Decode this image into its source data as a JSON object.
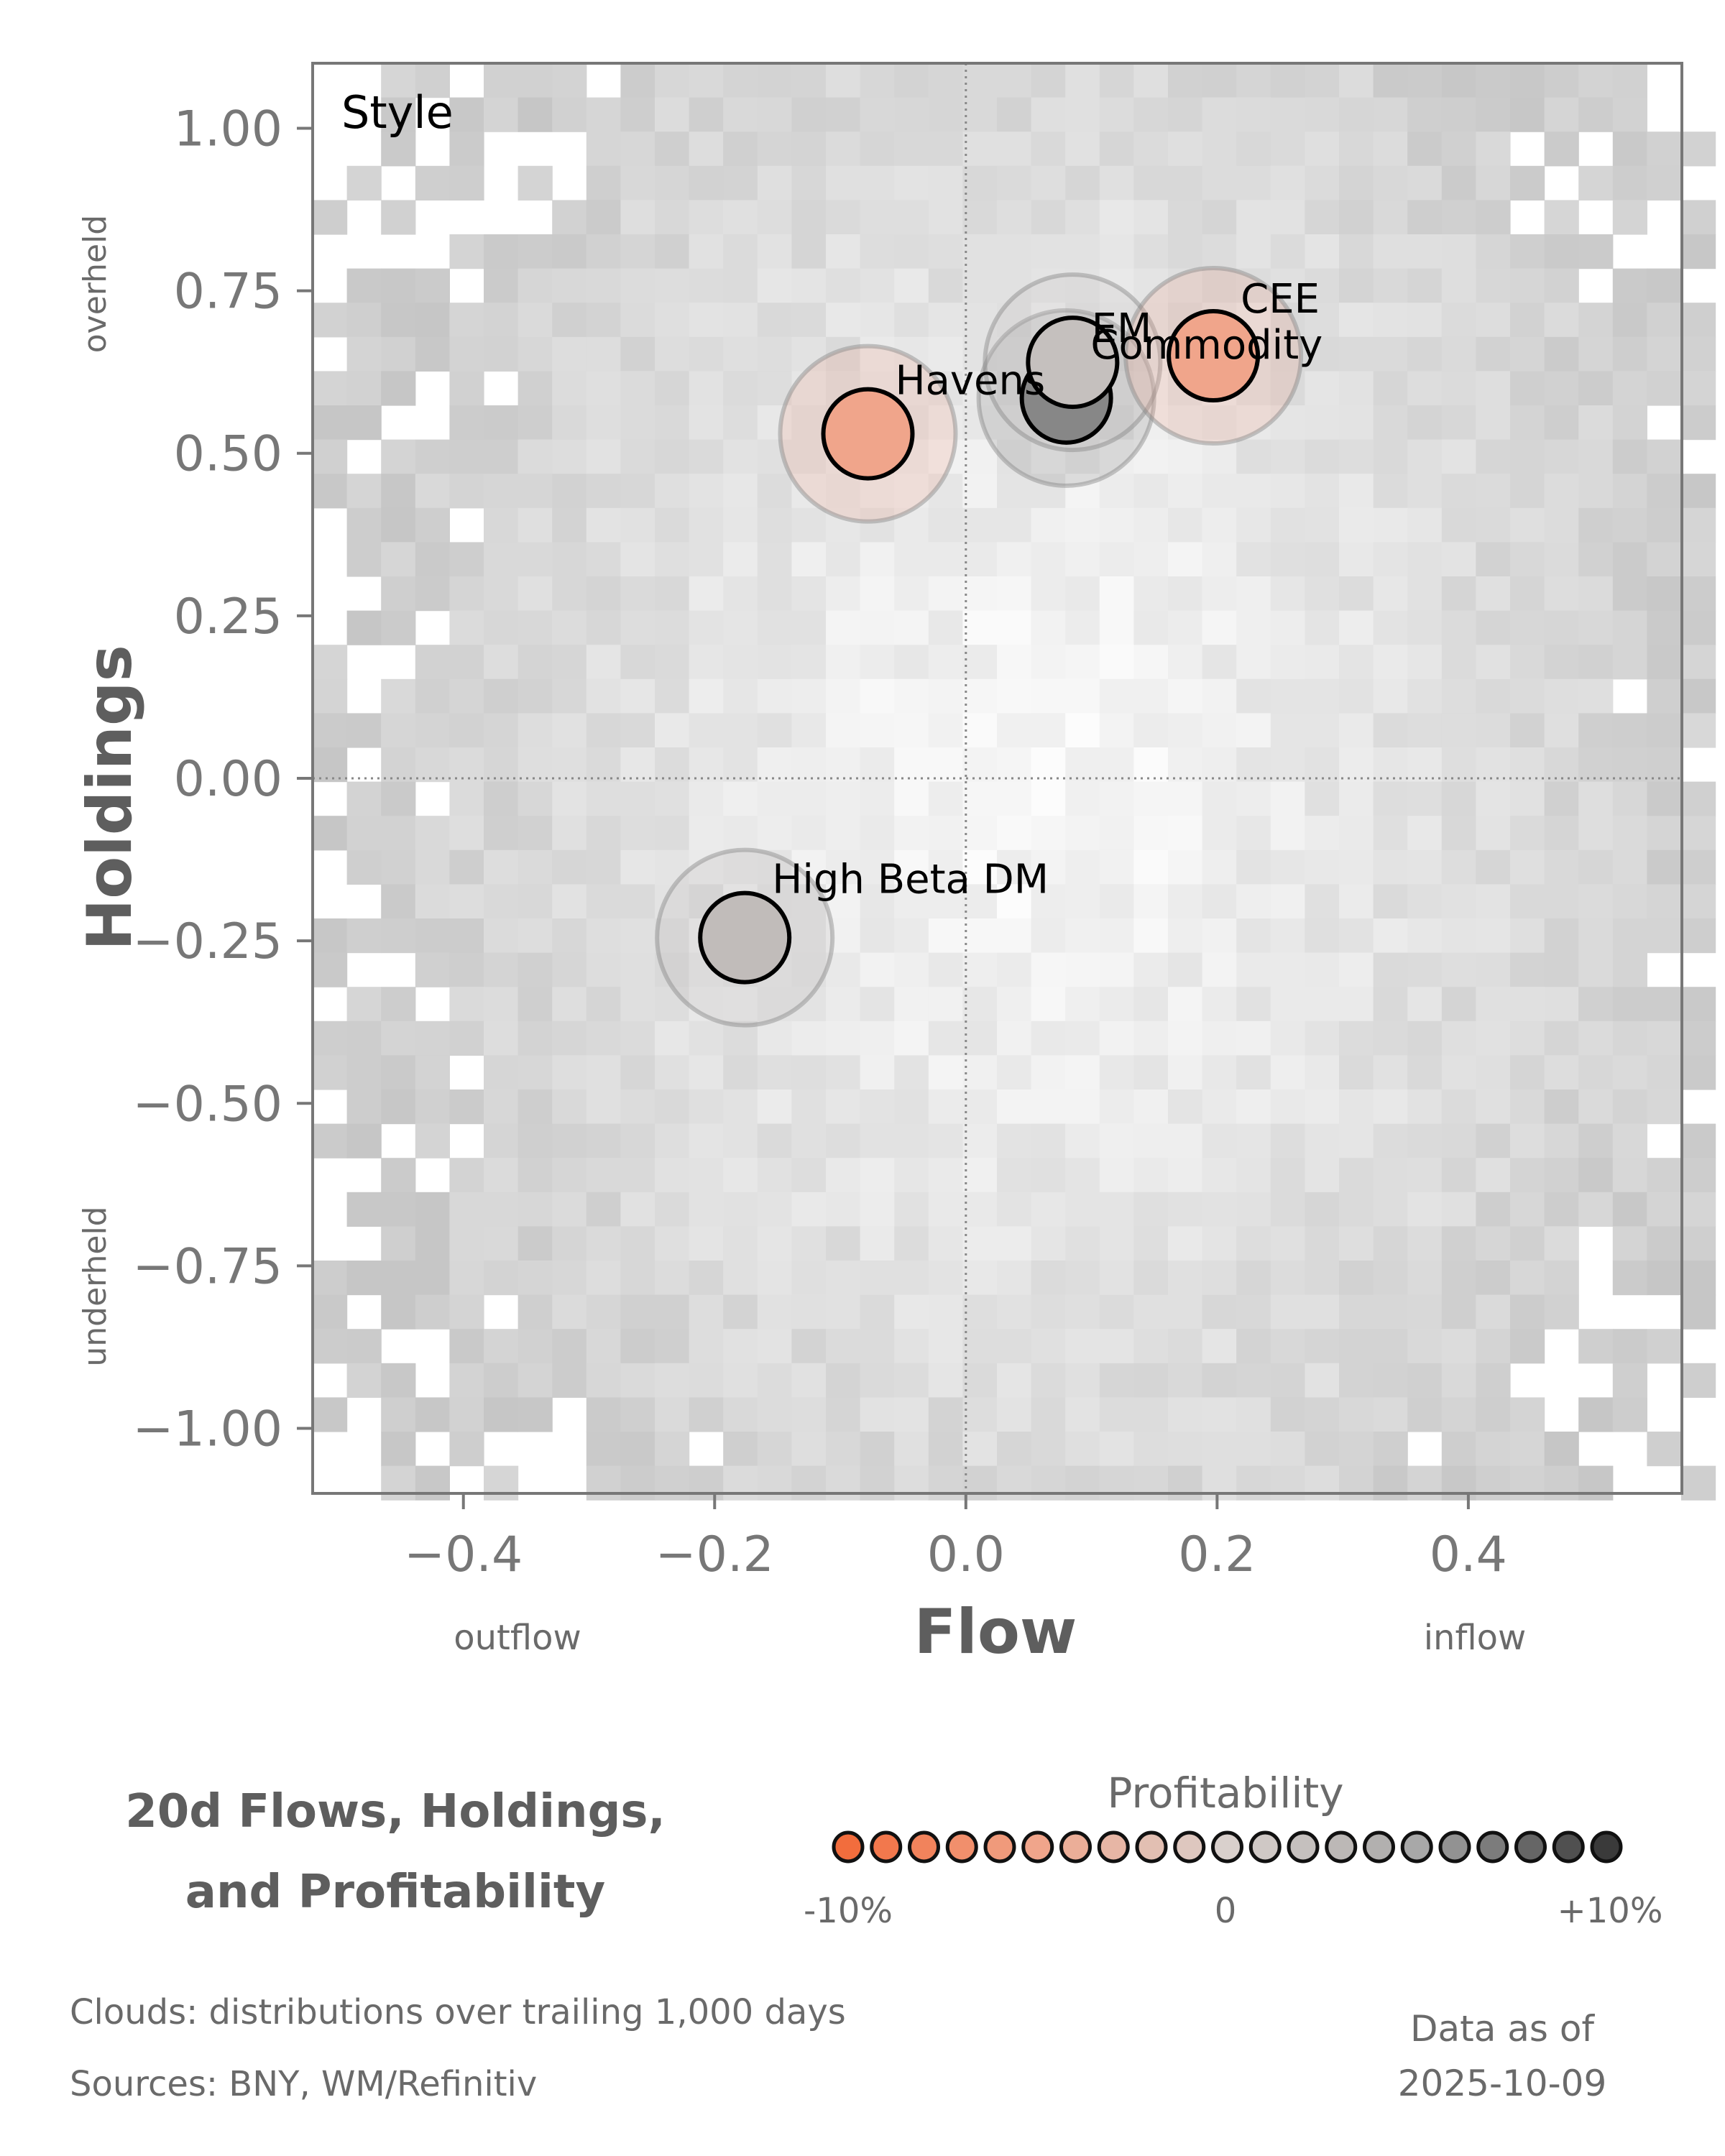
{
  "chart_data": {
    "type": "scatter",
    "panel_label": "Style",
    "xlabel": "Flow",
    "ylabel": "Holdings",
    "x_side_labels": {
      "left": "outflow",
      "right": "inflow"
    },
    "y_side_labels": {
      "top": "overheld",
      "bottom": "underheld"
    },
    "xlim": [
      -0.52,
      0.57
    ],
    "ylim": [
      -1.1,
      1.1
    ],
    "xticks": [
      -0.4,
      -0.2,
      0.0,
      0.2,
      0.4
    ],
    "xtick_labels": [
      "−0.4",
      "−0.2",
      "0.0",
      "0.2",
      "0.4"
    ],
    "yticks": [
      1.0,
      0.75,
      0.5,
      0.25,
      0.0,
      -0.25,
      -0.5,
      -0.75,
      -1.0
    ],
    "ytick_labels": [
      "1.00",
      "0.75",
      "0.50",
      "0.25",
      "0.00",
      "−0.25",
      "−0.50",
      "−0.75",
      "−1.00"
    ],
    "points": [
      {
        "name": "Havens",
        "x": -0.078,
        "y": 0.53,
        "profitability": -0.05
      },
      {
        "name": "EM",
        "x": 0.08,
        "y": 0.585,
        "profitability": 0.065
      },
      {
        "name": "Commodity",
        "x": 0.085,
        "y": 0.64,
        "profitability": 0.02
      },
      {
        "name": "CEE",
        "x": 0.197,
        "y": 0.65,
        "profitability": -0.05
      },
      {
        "name": "High Beta DM",
        "x": -0.176,
        "y": -0.245,
        "profitability": 0.025
      }
    ],
    "background": "density clouds (grey 2D histogram)",
    "colorbar": {
      "title": "Profitability",
      "labels": [
        "-10%",
        "0",
        "+10%"
      ],
      "range": [
        -0.1,
        0.1
      ],
      "colors": [
        "#f26d3d",
        "#f0a58b",
        "#d9d0cc",
        "#a8a8a8",
        "#3a3a3a"
      ]
    }
  },
  "title_lines": [
    "20d Flows, Holdings,",
    "and Profitability"
  ],
  "footer": {
    "clouds_note": "Clouds:  distributions over trailing 1,000 days",
    "sources": "Sources:  BNY, WM/Refinitiv",
    "asof_label": "Data as of",
    "asof_date": "2025-10-09"
  }
}
